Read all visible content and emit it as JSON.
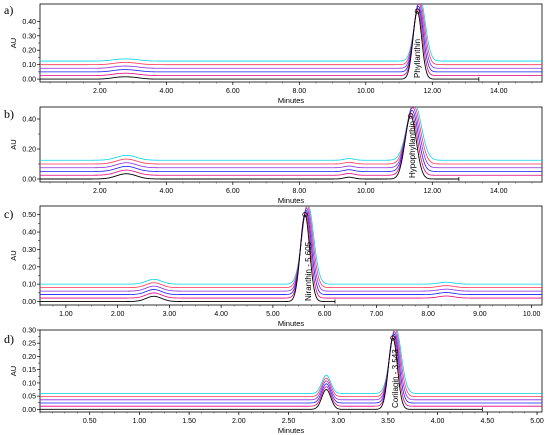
{
  "colors": {
    "trace_colors": [
      "#000000",
      "#e4007c",
      "#1a1aff",
      "#8a2be2",
      "#ff3355",
      "#00d5e8"
    ]
  },
  "chart_data": [
    {
      "type": "line",
      "panel_label": "a)",
      "xlabel": "Minutes",
      "ylabel": "AU",
      "xlim": [
        0.2,
        15.3
      ],
      "ylim": [
        -0.02,
        0.52
      ],
      "xticks": [
        2,
        4,
        6,
        8,
        10,
        12,
        14
      ],
      "xtick_labels": [
        "2.00",
        "4.00",
        "6.00",
        "8.00",
        "10.00",
        "12.00",
        "14.00"
      ],
      "yticks": [
        0,
        0.1,
        0.2,
        0.3,
        0.4
      ],
      "ytick_labels": [
        "0.00",
        "0.10",
        "0.20",
        "0.30",
        "0.40"
      ],
      "peak_label": "Phyllanthin",
      "peak_label_x": 11.45,
      "trace_offsets": [
        0.0,
        0.025,
        0.05,
        0.075,
        0.1,
        0.125
      ],
      "peaks": [
        {
          "center": 11.55,
          "height": 0.47,
          "width": 0.13
        },
        {
          "center": 2.6,
          "height": 0.012,
          "width": 0.25
        },
        {
          "center": 3.0,
          "height": 0.01,
          "width": 0.25
        }
      ],
      "reference_end": 13.4
    },
    {
      "type": "line",
      "panel_label": "b)",
      "xlabel": "Minutes",
      "ylabel": "AU",
      "xlim": [
        0.2,
        15.3
      ],
      "ylim": [
        -0.02,
        0.48
      ],
      "xticks": [
        2,
        4,
        6,
        8,
        10,
        12,
        14
      ],
      "xtick_labels": [
        "2.00",
        "4.00",
        "6.00",
        "8.00",
        "10.00",
        "12.00",
        "14.00"
      ],
      "yticks": [
        0,
        0.2,
        0.4
      ],
      "ytick_labels": [
        "0.00",
        "0.20",
        "0.40"
      ],
      "peak_label": "Hypophyllanthin",
      "peak_label_x": 11.3,
      "trace_offsets": [
        0.0,
        0.025,
        0.05,
        0.075,
        0.1,
        0.125
      ],
      "peaks": [
        {
          "center": 11.35,
          "height": 0.42,
          "width": 0.17
        },
        {
          "center": 2.8,
          "height": 0.035,
          "width": 0.3
        },
        {
          "center": 9.5,
          "height": 0.012,
          "width": 0.15
        }
      ],
      "reference_end": 12.8
    },
    {
      "type": "line",
      "panel_label": "c)",
      "xlabel": "Minutes",
      "ylabel": "AU",
      "xlim": [
        0.5,
        10.2
      ],
      "ylim": [
        -0.02,
        0.55
      ],
      "xticks": [
        1,
        2,
        3,
        4,
        5,
        6,
        7,
        8,
        9,
        10
      ],
      "xtick_labels": [
        "1.00",
        "2.00",
        "3.00",
        "4.00",
        "5.00",
        "6.00",
        "7.00",
        "8.00",
        "9.00",
        "10.00"
      ],
      "yticks": [
        0,
        0.1,
        0.2,
        0.3,
        0.4,
        0.5
      ],
      "ytick_labels": [
        "0.00",
        "0.10",
        "0.20",
        "0.30",
        "0.40",
        "0.50"
      ],
      "peak_label": "Niranthin - 5.605",
      "peak_label_x": 5.62,
      "trace_offsets": [
        0.0,
        0.02,
        0.04,
        0.06,
        0.08,
        0.1
      ],
      "peaks": [
        {
          "center": 5.62,
          "height": 0.5,
          "width": 0.09
        },
        {
          "center": 2.7,
          "height": 0.03,
          "width": 0.15
        },
        {
          "center": 8.35,
          "height": 0.012,
          "width": 0.15
        }
      ],
      "reference_end": 6.2
    },
    {
      "type": "line",
      "panel_label": "d)",
      "xlabel": "Minutes",
      "ylabel": "AU",
      "xlim": [
        0.0,
        5.05
      ],
      "ylim": [
        -0.01,
        0.3
      ],
      "xticks": [
        0.5,
        1.0,
        1.5,
        2.0,
        2.5,
        3.0,
        3.5,
        4.0,
        4.5,
        5.0
      ],
      "xtick_labels": [
        "0.50",
        "1.00",
        "1.50",
        "2.00",
        "2.50",
        "3.00",
        "3.50",
        "4.00",
        "4.50",
        "5.00"
      ],
      "yticks": [
        0,
        0.05,
        0.1,
        0.15,
        0.2,
        0.25,
        0.3
      ],
      "ytick_labels": [
        "0.00",
        "0.05",
        "0.10",
        "0.15",
        "0.20",
        "0.25",
        "0.30"
      ],
      "peak_label": "Corilagin - 3.543",
      "peak_label_x": 3.54,
      "trace_offsets": [
        0.0,
        0.012,
        0.024,
        0.036,
        0.048,
        0.06
      ],
      "peaks": [
        {
          "center": 3.55,
          "height": 0.27,
          "width": 0.045
        },
        {
          "center": 2.88,
          "height": 0.075,
          "width": 0.045
        }
      ],
      "reference_end": 4.45
    }
  ]
}
